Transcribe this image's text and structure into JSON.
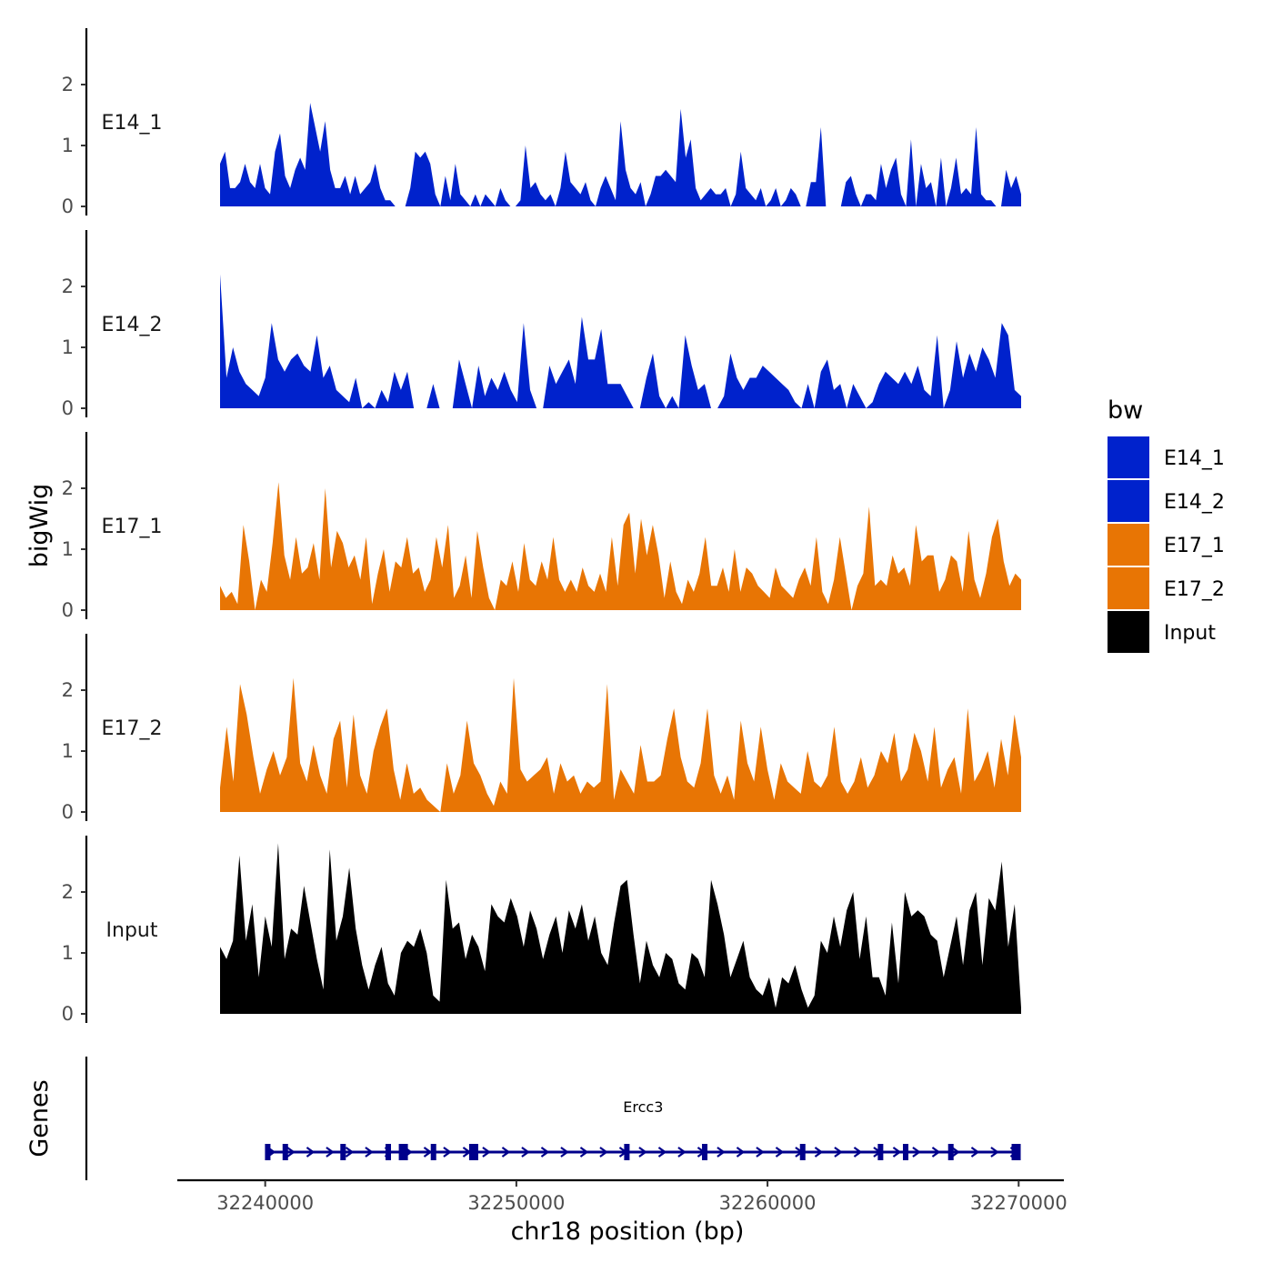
{
  "chart_data": {
    "type": "area",
    "chromosome": "chr18",
    "xlabel": "chr18 position (bp)",
    "ylabel_tracks": "bigWig",
    "ylabel_genes": "Genes",
    "xlim": [
      32236500,
      32271800
    ],
    "x_ticks": [
      32240000,
      32250000,
      32260000,
      32270000
    ],
    "x_tick_labels": [
      "32240000",
      "32250000",
      "32260000",
      "32270000"
    ],
    "ylim": [
      0,
      2.9
    ],
    "y_ticks": [
      0,
      1,
      2
    ],
    "y_tick_labels": [
      "0",
      "1",
      "2"
    ],
    "legend": {
      "title": "bw",
      "entries": [
        {
          "label": "E14_1",
          "color": "#0022cc"
        },
        {
          "label": "E14_2",
          "color": "#0022cc"
        },
        {
          "label": "E17_1",
          "color": "#e87504"
        },
        {
          "label": "E17_2",
          "color": "#e87504"
        },
        {
          "label": "Input",
          "color": "#000000"
        }
      ]
    },
    "series": [
      {
        "name": "E14_1",
        "label": "E14_1",
        "color": "#0022cc",
        "x_start": 32238200,
        "x_end": 32270100,
        "values": [
          0.7,
          0.9,
          0.3,
          0.3,
          0.4,
          0.7,
          0.4,
          0.3,
          0.7,
          0.3,
          0.2,
          0.9,
          1.2,
          0.5,
          0.3,
          0.6,
          0.8,
          0.6,
          1.7,
          1.3,
          0.9,
          1.4,
          0.6,
          0.3,
          0.3,
          0.5,
          0.2,
          0.5,
          0.2,
          0.3,
          0.4,
          0.7,
          0.3,
          0.1,
          0.1,
          0,
          0,
          0,
          0.3,
          0.9,
          0.8,
          0.9,
          0.7,
          0.2,
          0,
          0.5,
          0.1,
          0.7,
          0.2,
          0.1,
          0,
          0.2,
          0,
          0.2,
          0.1,
          0,
          0.3,
          0.1,
          0,
          0,
          0.1,
          1,
          0.3,
          0.4,
          0.2,
          0.1,
          0.2,
          0,
          0.3,
          0.9,
          0.4,
          0.3,
          0.2,
          0.4,
          0.1,
          0,
          0.3,
          0.5,
          0.3,
          0.1,
          1.4,
          0.6,
          0.3,
          0.2,
          0.4,
          0,
          0.2,
          0.5,
          0.5,
          0.6,
          0.5,
          0.4,
          1.6,
          0.8,
          1.1,
          0.3,
          0.1,
          0.2,
          0.3,
          0.2,
          0.2,
          0.3,
          0,
          0.2,
          0.9,
          0.3,
          0.2,
          0.1,
          0.3,
          0,
          0.1,
          0.3,
          0,
          0.1,
          0.3,
          0.2,
          0,
          0,
          0.4,
          0.4,
          1.3,
          0,
          0,
          0,
          0,
          0.4,
          0.5,
          0.2,
          0,
          0.2,
          0.2,
          0.1,
          0.7,
          0.3,
          0.6,
          0.8,
          0.2,
          0,
          1.1,
          0,
          0.7,
          0.3,
          0.4,
          0,
          0.8,
          0,
          0.3,
          0.8,
          0.2,
          0.3,
          0.2,
          1.3,
          0.2,
          0.1,
          0.1,
          0,
          0,
          0.6,
          0.3,
          0.5,
          0.2
        ]
      },
      {
        "name": "E14_2",
        "label": "E14_2",
        "color": "#0022cc",
        "x_start": 32238200,
        "x_end": 32270100,
        "values": [
          2.2,
          0.5,
          1,
          0.6,
          0.4,
          0.3,
          0.2,
          0.5,
          1.4,
          0.8,
          0.6,
          0.8,
          0.9,
          0.7,
          0.6,
          1.2,
          0.5,
          0.7,
          0.3,
          0.2,
          0.1,
          0.5,
          0,
          0.1,
          0,
          0.3,
          0.1,
          0.6,
          0.3,
          0.6,
          0,
          0,
          0,
          0.4,
          0,
          0,
          0,
          0.8,
          0.4,
          0,
          0.7,
          0.2,
          0.5,
          0.3,
          0.6,
          0.3,
          0.1,
          1.4,
          0.3,
          0,
          0,
          0.7,
          0.4,
          0.6,
          0.8,
          0.4,
          1.5,
          0.8,
          0.8,
          1.3,
          0.4,
          0.4,
          0.4,
          0.2,
          0,
          0,
          0.5,
          0.9,
          0.2,
          0,
          0.2,
          0,
          1.2,
          0.7,
          0.3,
          0.4,
          0,
          0,
          0.2,
          0.9,
          0.5,
          0.3,
          0.5,
          0.5,
          0.7,
          0.6,
          0.5,
          0.4,
          0.3,
          0.1,
          0,
          0.4,
          0,
          0.6,
          0.8,
          0.3,
          0.4,
          0,
          0.4,
          0.2,
          0,
          0.1,
          0.4,
          0.6,
          0.5,
          0.4,
          0.6,
          0.4,
          0.7,
          0.3,
          0.2,
          1.2,
          0,
          0.3,
          1.1,
          0.5,
          0.9,
          0.6,
          1,
          0.8,
          0.5,
          1.4,
          1.2,
          0.3,
          0.2
        ]
      },
      {
        "name": "E17_1",
        "label": "E17_1",
        "color": "#e87504",
        "x_start": 32238200,
        "x_end": 32270100,
        "values": [
          0.4,
          0.2,
          0.3,
          0.1,
          1.4,
          0.8,
          0,
          0.5,
          0.3,
          1.1,
          2.1,
          0.9,
          0.5,
          1.2,
          0.6,
          0.7,
          1.1,
          0.5,
          2,
          0.7,
          1.3,
          1.1,
          0.7,
          0.9,
          0.5,
          1.2,
          0.1,
          0.6,
          1,
          0.3,
          0.8,
          0.7,
          1.2,
          0.6,
          0.7,
          0.3,
          0.5,
          1.2,
          0.7,
          1.4,
          0.2,
          0.4,
          0.9,
          0.2,
          1.3,
          0.7,
          0.2,
          0,
          0.5,
          0.4,
          0.8,
          0.3,
          1.1,
          0.5,
          0.4,
          0.8,
          0.5,
          1.2,
          0.5,
          0.3,
          0.5,
          0.3,
          0.7,
          0.4,
          0.3,
          0.6,
          0.3,
          1.2,
          0.4,
          1.4,
          1.6,
          0.6,
          1.5,
          0.9,
          1.4,
          0.9,
          0.2,
          0.8,
          0.3,
          0.1,
          0.5,
          0.3,
          0.6,
          1.2,
          0.4,
          0.4,
          0.7,
          0.3,
          1,
          0.3,
          0.7,
          0.6,
          0.4,
          0.3,
          0.2,
          0.7,
          0.4,
          0.3,
          0.2,
          0.5,
          0.7,
          0.4,
          1.2,
          0.3,
          0.1,
          0.5,
          1.2,
          0.6,
          0,
          0.4,
          0.6,
          1.7,
          0.4,
          0.5,
          0.4,
          0.9,
          0.6,
          0.7,
          0.4,
          1.4,
          0.8,
          0.9,
          0.9,
          0.3,
          0.5,
          0.9,
          0.8,
          0.3,
          1.3,
          0.5,
          0.2,
          0.6,
          1.2,
          1.5,
          0.8,
          0.4,
          0.6,
          0.5
        ]
      },
      {
        "name": "E17_2",
        "label": "E17_2",
        "color": "#e87504",
        "x_start": 32238200,
        "x_end": 32270100,
        "values": [
          0.4,
          1.4,
          0.5,
          2.1,
          1.6,
          0.9,
          0.3,
          0.7,
          1,
          0.6,
          0.9,
          2.2,
          0.8,
          0.5,
          1.1,
          0.6,
          0.3,
          1.2,
          1.5,
          0.4,
          1.6,
          0.6,
          0.3,
          1,
          1.4,
          1.7,
          0.7,
          0.2,
          0.8,
          0.3,
          0.4,
          0.2,
          0.1,
          0,
          0.8,
          0.3,
          0.6,
          1.5,
          0.8,
          0.6,
          0.3,
          0.1,
          0.5,
          0.3,
          2.2,
          0.7,
          0.5,
          0.6,
          0.7,
          0.9,
          0.3,
          0.8,
          0.5,
          0.6,
          0.3,
          0.5,
          0.4,
          0.5,
          2.1,
          0.2,
          0.7,
          0.5,
          0.3,
          1.1,
          0.5,
          0.5,
          0.6,
          1.2,
          1.7,
          0.9,
          0.5,
          0.4,
          0.8,
          1.7,
          0.6,
          0.3,
          0.6,
          0.2,
          1.5,
          0.8,
          0.5,
          1.4,
          0.7,
          0.2,
          0.8,
          0.5,
          0.4,
          0.3,
          1,
          0.5,
          0.4,
          0.6,
          1.4,
          0.5,
          0.3,
          0.5,
          0.9,
          0.4,
          0.6,
          1,
          0.8,
          1.3,
          0.5,
          0.7,
          1.3,
          1,
          0.5,
          1.4,
          0.4,
          0.7,
          0.9,
          0.3,
          1.7,
          0.5,
          0.7,
          1,
          0.4,
          1.2,
          0.6,
          1.6,
          0.9
        ]
      },
      {
        "name": "Input",
        "label": "Input",
        "color": "#000000",
        "x_start": 32238200,
        "x_end": 32270100,
        "values": [
          1.1,
          0.9,
          1.2,
          2.6,
          1.2,
          1.8,
          0.6,
          1.6,
          1.1,
          2.8,
          0.9,
          1.4,
          1.3,
          2.1,
          1.5,
          0.9,
          0.4,
          2.7,
          1.2,
          1.6,
          2.4,
          1.4,
          0.8,
          0.4,
          0.8,
          1.1,
          0.5,
          0.3,
          1,
          1.2,
          1.1,
          1.4,
          1,
          0.3,
          0.2,
          2.2,
          1.4,
          1.5,
          0.9,
          1.3,
          1.1,
          0.7,
          1.8,
          1.6,
          1.5,
          1.9,
          1.6,
          1.1,
          1.7,
          1.4,
          0.9,
          1.3,
          1.6,
          1,
          1.7,
          1.4,
          1.8,
          1.2,
          1.6,
          1,
          0.8,
          1.5,
          2.1,
          2.2,
          1.3,
          0.5,
          1.2,
          0.8,
          0.6,
          1,
          0.9,
          0.5,
          0.4,
          1,
          0.9,
          0.6,
          2.2,
          1.8,
          1.3,
          0.6,
          0.9,
          1.2,
          0.6,
          0.4,
          0.3,
          0.6,
          0.1,
          0.6,
          0.5,
          0.8,
          0.4,
          0.1,
          0.3,
          1.2,
          1.0,
          1.6,
          1.1,
          1.7,
          2.0,
          0.9,
          1.6,
          0.6,
          0.6,
          0.3,
          1.5,
          0.5,
          2.0,
          1.6,
          1.7,
          1.6,
          1.3,
          1.2,
          0.6,
          1.1,
          1.6,
          0.8,
          1.7,
          2.0,
          0.8,
          1.9,
          1.7,
          2.5,
          1.1,
          1.8,
          0.1
        ]
      }
    ],
    "gene": {
      "name": "Ercc3",
      "strand": "+",
      "start": 32240100,
      "end": 32270000,
      "exons": [
        32240100,
        32240800,
        32243100,
        32244900,
        32245500,
        32246700,
        32248300,
        32254400,
        32257500,
        32261400,
        32264500,
        32265500,
        32267300,
        32269900
      ]
    }
  }
}
